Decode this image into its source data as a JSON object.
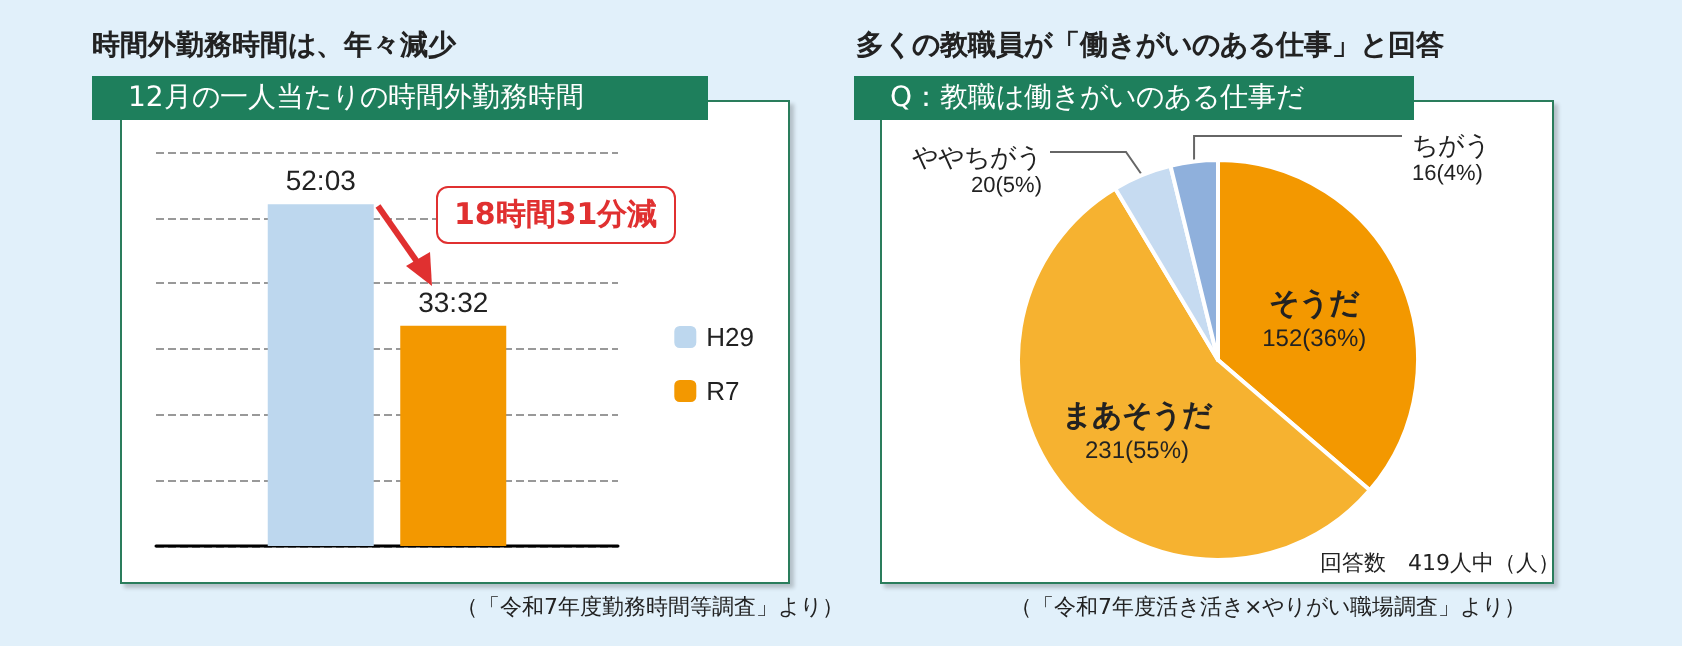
{
  "chart_data": [
    {
      "type": "bar",
      "title": "時間外勤務時間は、年々減少",
      "subtitle": "12月の一人当たりの時間外勤務時間",
      "categories": [
        null
      ],
      "series": [
        {
          "name": "H29",
          "color": "#bdd7ee",
          "values": [
            52.05
          ],
          "value_labels": [
            "52:03"
          ]
        },
        {
          "name": "R7",
          "color": "#f39800",
          "values": [
            33.53
          ],
          "value_labels": [
            "33:32"
          ]
        }
      ],
      "ylim": [
        0,
        60
      ],
      "yticks": [
        {
          "value": 0,
          "label": null
        },
        {
          "value": 10,
          "label": null
        },
        {
          "value": 20,
          "label": null
        },
        {
          "value": 30,
          "label": null
        },
        {
          "value": 40,
          "label": null
        },
        {
          "value": 50,
          "label": null
        },
        {
          "value": 60,
          "label": null
        }
      ],
      "grid": "y",
      "legend": "right",
      "annotations": [
        "18時間31分減",
        "（「令和7年度勤務時間等調査」より）"
      ]
    },
    {
      "type": "pie",
      "title": "多くの教職員が「働きがいのある仕事」と回答",
      "subtitle": "Q：教職は働きがいのある仕事だ",
      "categories": [
        "そうだ",
        "まあそうだ",
        "ややちがう",
        "ちがう"
      ],
      "values": [
        152,
        231,
        20,
        16
      ],
      "colors": [
        "#f39800",
        "#f6b230",
        "#c6dbf1",
        "#8fb0dc"
      ],
      "value_labels": [
        "152(36%)",
        "231(55%)",
        "20(5%)",
        "16(4%)"
      ],
      "legend": false,
      "annotations": [
        "回答数　419人中（人）",
        "（「令和7年度活き活き×やりがい職場調査」より）"
      ]
    }
  ]
}
